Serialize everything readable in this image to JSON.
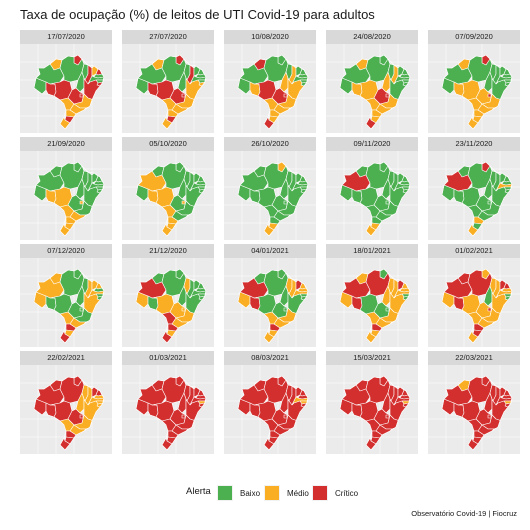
{
  "title": "Taxa de ocupação (%) de leitos de UTI Covid-19 para adultos",
  "colors": {
    "baixo": "#4caf50",
    "medio": "#f9ae23",
    "critico": "#d32f2f",
    "border": "#ffffff"
  },
  "legend": {
    "title": "Alerta",
    "items": [
      {
        "key": "baixo",
        "label": "Baixo"
      },
      {
        "key": "medio",
        "label": "Médio"
      },
      {
        "key": "critico",
        "label": "Crítico"
      }
    ]
  },
  "caption": "Observatório Covid-19 | Fiocruz",
  "panels": [
    {
      "date": "17/07/2020",
      "states": {
        "AC": "baixo",
        "AM": "baixo",
        "RR": "medio",
        "RO": "critico",
        "PA": "baixo",
        "AP": "critico",
        "TO": "baixo",
        "MT": "critico",
        "MS": "medio",
        "GO": "critico",
        "DF": "critico",
        "MA": "baixo",
        "PI": "critico",
        "CE": "medio",
        "RN": "critico",
        "PB": "baixo",
        "PE": "baixo",
        "AL": "baixo",
        "SE": "critico",
        "BA": "critico",
        "MG": "medio",
        "ES": "medio",
        "RJ": "medio",
        "SP": "medio",
        "PR": "medio",
        "SC": "critico",
        "RS": "medio"
      }
    },
    {
      "date": "27/07/2020",
      "states": {
        "AC": "baixo",
        "AM": "baixo",
        "RR": "medio",
        "RO": "critico",
        "PA": "baixo",
        "AP": "critico",
        "TO": "baixo",
        "MT": "critico",
        "MS": "medio",
        "GO": "critico",
        "DF": "critico",
        "MA": "baixo",
        "PI": "critico",
        "CE": "baixo",
        "RN": "baixo",
        "PB": "baixo",
        "PE": "baixo",
        "AL": "baixo",
        "SE": "medio",
        "BA": "medio",
        "MG": "medio",
        "ES": "medio",
        "RJ": "medio",
        "SP": "medio",
        "PR": "medio",
        "SC": "critico",
        "RS": "medio"
      }
    },
    {
      "date": "10/08/2020",
      "states": {
        "AC": "baixo",
        "AM": "baixo",
        "RR": "critico",
        "RO": "medio",
        "PA": "baixo",
        "AP": "baixo",
        "TO": "medio",
        "MT": "critico",
        "MS": "medio",
        "GO": "critico",
        "DF": "critico",
        "MA": "baixo",
        "PI": "medio",
        "CE": "baixo",
        "RN": "baixo",
        "PB": "baixo",
        "PE": "baixo",
        "AL": "baixo",
        "SE": "baixo",
        "BA": "medio",
        "MG": "medio",
        "ES": "baixo",
        "RJ": "medio",
        "SP": "medio",
        "PR": "medio",
        "SC": "medio",
        "RS": "critico"
      }
    },
    {
      "date": "24/08/2020",
      "states": {
        "AC": "baixo",
        "AM": "baixo",
        "RR": "medio",
        "RO": "medio",
        "PA": "baixo",
        "AP": "baixo",
        "TO": "medio",
        "MT": "medio",
        "MS": "medio",
        "GO": "critico",
        "DF": "critico",
        "MA": "baixo",
        "PI": "medio",
        "CE": "baixo",
        "RN": "baixo",
        "PB": "baixo",
        "PE": "baixo",
        "AL": "baixo",
        "SE": "baixo",
        "BA": "baixo",
        "MG": "medio",
        "ES": "baixo",
        "RJ": "medio",
        "SP": "medio",
        "PR": "medio",
        "SC": "medio",
        "RS": "critico"
      }
    },
    {
      "date": "07/09/2020",
      "states": {
        "AC": "baixo",
        "AM": "baixo",
        "RR": "medio",
        "RO": "medio",
        "PA": "baixo",
        "AP": "critico",
        "TO": "baixo",
        "MT": "medio",
        "MS": "medio",
        "GO": "medio",
        "DF": "critico",
        "MA": "baixo",
        "PI": "baixo",
        "CE": "baixo",
        "RN": "baixo",
        "PB": "baixo",
        "PE": "baixo",
        "AL": "baixo",
        "SE": "baixo",
        "BA": "baixo",
        "MG": "medio",
        "ES": "baixo",
        "RJ": "critico",
        "SP": "medio",
        "PR": "medio",
        "SC": "medio",
        "RS": "medio"
      }
    },
    {
      "date": "21/09/2020",
      "states": {
        "AC": "baixo",
        "AM": "baixo",
        "RR": "baixo",
        "RO": "medio",
        "PA": "baixo",
        "AP": "baixo",
        "TO": "baixo",
        "MT": "medio",
        "MS": "medio",
        "GO": "baixo",
        "DF": "medio",
        "MA": "baixo",
        "PI": "baixo",
        "CE": "baixo",
        "RN": "baixo",
        "PB": "baixo",
        "PE": "baixo",
        "AL": "baixo",
        "SE": "baixo",
        "BA": "baixo",
        "MG": "baixo",
        "ES": "baixo",
        "RJ": "critico",
        "SP": "medio",
        "PR": "medio",
        "SC": "medio",
        "RS": "medio"
      }
    },
    {
      "date": "05/10/2020",
      "states": {
        "AC": "baixo",
        "AM": "medio",
        "RR": "baixo",
        "RO": "medio",
        "PA": "baixo",
        "AP": "baixo",
        "TO": "baixo",
        "MT": "medio",
        "MS": "medio",
        "GO": "baixo",
        "DF": "medio",
        "MA": "baixo",
        "PI": "baixo",
        "CE": "baixo",
        "RN": "baixo",
        "PB": "baixo",
        "PE": "baixo",
        "AL": "baixo",
        "SE": "baixo",
        "BA": "baixo",
        "MG": "baixo",
        "ES": "baixo",
        "RJ": "medio",
        "SP": "baixo",
        "PR": "medio",
        "SC": "medio",
        "RS": "medio"
      }
    },
    {
      "date": "26/10/2020",
      "states": {
        "AC": "baixo",
        "AM": "baixo",
        "RR": "baixo",
        "RO": "baixo",
        "PA": "baixo",
        "AP": "medio",
        "TO": "baixo",
        "MT": "baixo",
        "MS": "baixo",
        "GO": "baixo",
        "DF": "baixo",
        "MA": "baixo",
        "PI": "baixo",
        "CE": "baixo",
        "RN": "baixo",
        "PB": "baixo",
        "PE": "baixo",
        "AL": "baixo",
        "SE": "baixo",
        "BA": "baixo",
        "MG": "baixo",
        "ES": "baixo",
        "RJ": "medio",
        "SP": "baixo",
        "PR": "baixo",
        "SC": "medio",
        "RS": "medio"
      }
    },
    {
      "date": "09/11/2020",
      "states": {
        "AC": "baixo",
        "AM": "critico",
        "RR": "baixo",
        "RO": "baixo",
        "PA": "baixo",
        "AP": "baixo",
        "TO": "baixo",
        "MT": "baixo",
        "MS": "baixo",
        "GO": "baixo",
        "DF": "baixo",
        "MA": "baixo",
        "PI": "baixo",
        "CE": "baixo",
        "RN": "baixo",
        "PB": "baixo",
        "PE": "baixo",
        "AL": "baixo",
        "SE": "baixo",
        "BA": "baixo",
        "MG": "baixo",
        "ES": "baixo",
        "RJ": "medio",
        "SP": "baixo",
        "PR": "baixo",
        "SC": "medio",
        "RS": "medio"
      }
    },
    {
      "date": "23/11/2020",
      "states": {
        "AC": "baixo",
        "AM": "critico",
        "RR": "baixo",
        "RO": "baixo",
        "PA": "baixo",
        "AP": "critico",
        "TO": "baixo",
        "MT": "baixo",
        "MS": "baixo",
        "GO": "baixo",
        "DF": "baixo",
        "MA": "baixo",
        "PI": "baixo",
        "CE": "baixo",
        "RN": "baixo",
        "PB": "baixo",
        "PE": "medio",
        "AL": "baixo",
        "SE": "baixo",
        "BA": "baixo",
        "MG": "baixo",
        "ES": "medio",
        "RJ": "critico",
        "SP": "baixo",
        "PR": "medio",
        "SC": "baixo",
        "RS": "medio"
      }
    },
    {
      "date": "07/12/2020",
      "states": {
        "AC": "medio",
        "AM": "medio",
        "RR": "medio",
        "RO": "baixo",
        "PA": "baixo",
        "AP": "baixo",
        "TO": "baixo",
        "MT": "baixo",
        "MS": "medio",
        "GO": "baixo",
        "DF": "baixo",
        "MA": "baixo",
        "PI": "medio",
        "CE": "medio",
        "RN": "medio",
        "PB": "baixo",
        "PE": "medio",
        "AL": "baixo",
        "SE": "baixo",
        "BA": "medio",
        "MG": "baixo",
        "ES": "critico",
        "RJ": "critico",
        "SP": "medio",
        "PR": "critico",
        "SC": "medio",
        "RS": "critico"
      }
    },
    {
      "date": "21/12/2020",
      "states": {
        "AC": "medio",
        "AM": "critico",
        "RR": "baixo",
        "RO": "baixo",
        "PA": "baixo",
        "AP": "baixo",
        "TO": "baixo",
        "MT": "medio",
        "MS": "critico",
        "GO": "medio",
        "DF": "medio",
        "MA": "medio",
        "PI": "baixo",
        "CE": "baixo",
        "RN": "baixo",
        "PB": "baixo",
        "PE": "baixo",
        "AL": "baixo",
        "SE": "baixo",
        "BA": "baixo",
        "MG": "medio",
        "ES": "critico",
        "RJ": "critico",
        "SP": "medio",
        "PR": "critico",
        "SC": "medio",
        "RS": "critico"
      }
    },
    {
      "date": "04/01/2021",
      "states": {
        "AC": "medio",
        "AM": "critico",
        "RR": "baixo",
        "RO": "critico",
        "PA": "baixo",
        "AP": "baixo",
        "TO": "baixo",
        "MT": "baixo",
        "MS": "medio",
        "GO": "baixo",
        "DF": "baixo",
        "MA": "medio",
        "PI": "medio",
        "CE": "critico",
        "RN": "medio",
        "PB": "medio",
        "PE": "medio",
        "AL": "baixo",
        "SE": "baixo",
        "BA": "baixo",
        "MG": "medio",
        "ES": "critico",
        "RJ": "critico",
        "SP": "medio",
        "PR": "critico",
        "SC": "medio",
        "RS": "medio"
      }
    },
    {
      "date": "18/01/2021",
      "states": {
        "AC": "medio",
        "AM": "critico",
        "RR": "medio",
        "RO": "critico",
        "PA": "critico",
        "AP": "baixo",
        "TO": "medio",
        "MT": "baixo",
        "MS": "medio",
        "GO": "baixo",
        "DF": "baixo",
        "MA": "medio",
        "PI": "medio",
        "CE": "critico",
        "RN": "medio",
        "PB": "medio",
        "PE": "medio",
        "AL": "baixo",
        "SE": "baixo",
        "BA": "medio",
        "MG": "medio",
        "ES": "critico",
        "RJ": "critico",
        "SP": "medio",
        "PR": "critico",
        "SC": "medio",
        "RS": "medio"
      }
    },
    {
      "date": "01/02/2021",
      "states": {
        "AC": "medio",
        "AM": "critico",
        "RR": "critico",
        "RO": "critico",
        "PA": "critico",
        "AP": "medio",
        "TO": "baixo",
        "MT": "medio",
        "MS": "medio",
        "GO": "medio",
        "DF": "critico",
        "MA": "medio",
        "PI": "medio",
        "CE": "critico",
        "RN": "critico",
        "PB": "medio",
        "PE": "medio",
        "AL": "baixo",
        "SE": "baixo",
        "BA": "medio",
        "MG": "medio",
        "ES": "critico",
        "RJ": "critico",
        "SP": "medio",
        "PR": "critico",
        "SC": "critico",
        "RS": "medio"
      }
    },
    {
      "date": "22/02/2021",
      "states": {
        "AC": "critico",
        "AM": "critico",
        "RR": "critico",
        "RO": "critico",
        "PA": "critico",
        "AP": "critico",
        "TO": "medio",
        "MT": "critico",
        "MS": "medio",
        "GO": "critico",
        "DF": "critico",
        "MA": "medio",
        "PI": "medio",
        "CE": "critico",
        "RN": "critico",
        "PB": "medio",
        "PE": "medio",
        "AL": "medio",
        "SE": "medio",
        "BA": "medio",
        "MG": "medio",
        "ES": "critico",
        "RJ": "critico",
        "SP": "medio",
        "PR": "critico",
        "SC": "critico",
        "RS": "critico"
      }
    },
    {
      "date": "01/03/2021",
      "states": {
        "AC": "critico",
        "AM": "critico",
        "RR": "critico",
        "RO": "critico",
        "PA": "critico",
        "AP": "critico",
        "TO": "critico",
        "MT": "critico",
        "MS": "critico",
        "GO": "critico",
        "DF": "critico",
        "MA": "critico",
        "PI": "critico",
        "CE": "critico",
        "RN": "critico",
        "PB": "critico",
        "PE": "critico",
        "AL": "medio",
        "SE": "critico",
        "BA": "critico",
        "MG": "critico",
        "ES": "critico",
        "RJ": "critico",
        "SP": "critico",
        "PR": "critico",
        "SC": "critico",
        "RS": "critico"
      }
    },
    {
      "date": "08/03/2021",
      "states": {
        "AC": "critico",
        "AM": "critico",
        "RR": "critico",
        "RO": "critico",
        "PA": "critico",
        "AP": "critico",
        "TO": "critico",
        "MT": "critico",
        "MS": "critico",
        "GO": "critico",
        "DF": "critico",
        "MA": "critico",
        "PI": "critico",
        "CE": "critico",
        "RN": "critico",
        "PB": "critico",
        "PE": "medio",
        "AL": "medio",
        "SE": "critico",
        "BA": "critico",
        "MG": "critico",
        "ES": "critico",
        "RJ": "critico",
        "SP": "critico",
        "PR": "critico",
        "SC": "critico",
        "RS": "critico"
      }
    },
    {
      "date": "15/03/2021",
      "states": {
        "AC": "critico",
        "AM": "critico",
        "RR": "critico",
        "RO": "critico",
        "PA": "critico",
        "AP": "critico",
        "TO": "critico",
        "MT": "critico",
        "MS": "critico",
        "GO": "critico",
        "DF": "critico",
        "MA": "critico",
        "PI": "critico",
        "CE": "critico",
        "RN": "critico",
        "PB": "critico",
        "PE": "critico",
        "AL": "medio",
        "SE": "critico",
        "BA": "critico",
        "MG": "critico",
        "ES": "critico",
        "RJ": "critico",
        "SP": "critico",
        "PR": "critico",
        "SC": "critico",
        "RS": "critico"
      }
    },
    {
      "date": "22/03/2021",
      "states": {
        "AC": "critico",
        "AM": "critico",
        "RR": "medio",
        "RO": "critico",
        "PA": "critico",
        "AP": "critico",
        "TO": "critico",
        "MT": "critico",
        "MS": "critico",
        "GO": "critico",
        "DF": "critico",
        "MA": "critico",
        "PI": "critico",
        "CE": "critico",
        "RN": "critico",
        "PB": "critico",
        "PE": "critico",
        "AL": "medio",
        "SE": "critico",
        "BA": "critico",
        "MG": "critico",
        "ES": "critico",
        "RJ": "critico",
        "SP": "critico",
        "PR": "critico",
        "SC": "critico",
        "RS": "critico"
      }
    }
  ]
}
